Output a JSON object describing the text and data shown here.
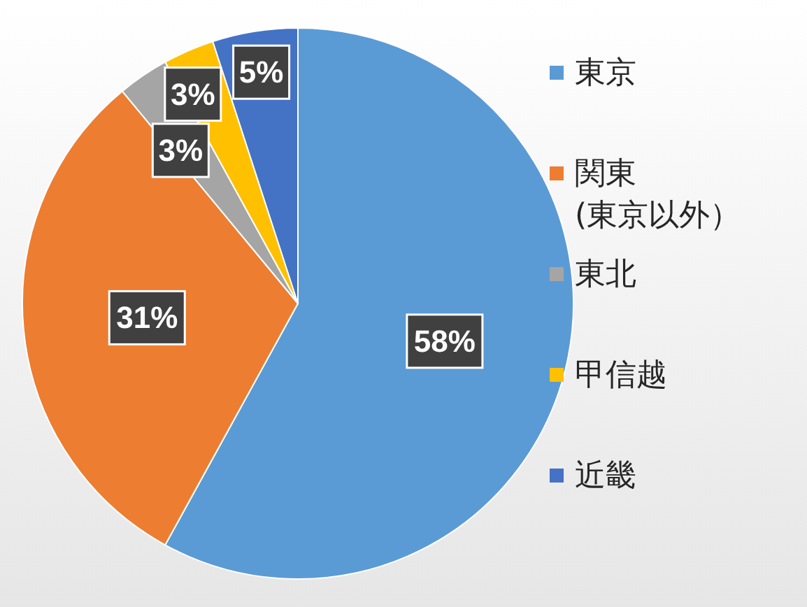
{
  "chart_data": {
    "type": "pie",
    "categories": [
      "東京",
      "関東\n(東京以外）",
      "東北",
      "甲信越",
      "近畿"
    ],
    "values": [
      58,
      31,
      3,
      3,
      5
    ],
    "colors": [
      "#5b9bd5",
      "#ed7d31",
      "#a5a5a5",
      "#ffc000",
      "#4472c4"
    ],
    "value_labels": [
      "58%",
      "31%",
      "3%",
      "3%",
      "5%"
    ],
    "legend": "right"
  }
}
